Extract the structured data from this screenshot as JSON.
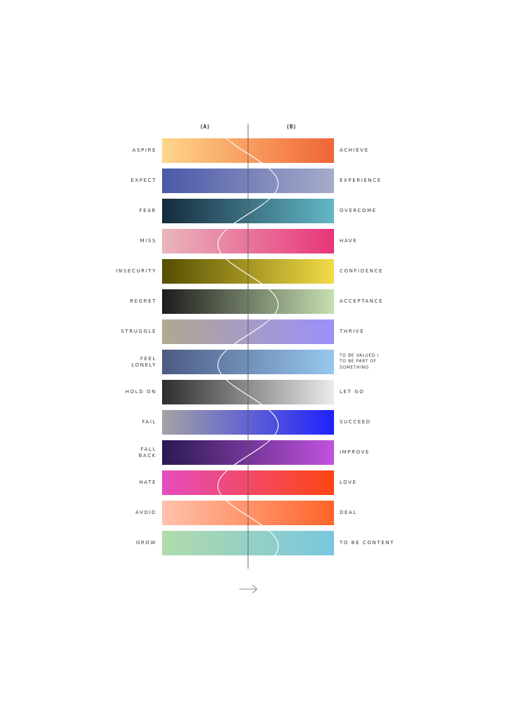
{
  "headers": {
    "a": "(A)",
    "b": "(B)"
  },
  "rows": [
    {
      "left": "ASPIRE",
      "right": "ACHIEVE",
      "from": "#ffd68a",
      "to": "#f06535"
    },
    {
      "left": "EXPECT",
      "right": "EXPERIENCE",
      "from": "#4a58a8",
      "to": "#a6acca"
    },
    {
      "left": "FEAR",
      "right": "OVERCOME",
      "from": "#152b3c",
      "to": "#63b8c8"
    },
    {
      "left": "MISS",
      "right": "HAVE",
      "from": "#e9b6bd",
      "to": "#e8357a"
    },
    {
      "left": "INSECURITY",
      "right": "CONFIDENCE",
      "from": "#554e00",
      "to": "#f3dc46"
    },
    {
      "left": "REGRET",
      "right": "ACCEPTANCE",
      "from": "#1c1c1c",
      "to": "#c6e0b0"
    },
    {
      "left": "STRUGGLE",
      "right": "THRIVE",
      "from": "#b1a88f",
      "to": "#9c8ffc"
    },
    {
      "left": "FEEL\nLONELY",
      "right": "TO BE VALUED /\nTO BE PART OF\nSOMETHING",
      "from": "#4b5a82",
      "to": "#97c8ef",
      "right_small": true
    },
    {
      "left": "HOLD ON",
      "right": "LET GO",
      "from": "#2e2e2e",
      "to": "#ebebeb"
    },
    {
      "left": "FAIL",
      "right": "SUCCEED",
      "from": "#a3a3a3",
      "to": "#1f22ff"
    },
    {
      "left": "FALL\nBACK",
      "right": "IMPROVE",
      "from": "#291a52",
      "to": "#c152de"
    },
    {
      "left": "HATE",
      "right": "LOVE",
      "from": "#e44dbf",
      "to": "#ff4512"
    },
    {
      "left": "AVOID",
      "right": "DEAL",
      "from": "#ffc2ac",
      "to": "#ff6428"
    },
    {
      "left": "GROW",
      "right": "TO BE CONTENT",
      "from": "#b1dbaa",
      "to": "#79c6df"
    }
  ],
  "icons": {
    "arrow": "arrow-right-icon"
  }
}
